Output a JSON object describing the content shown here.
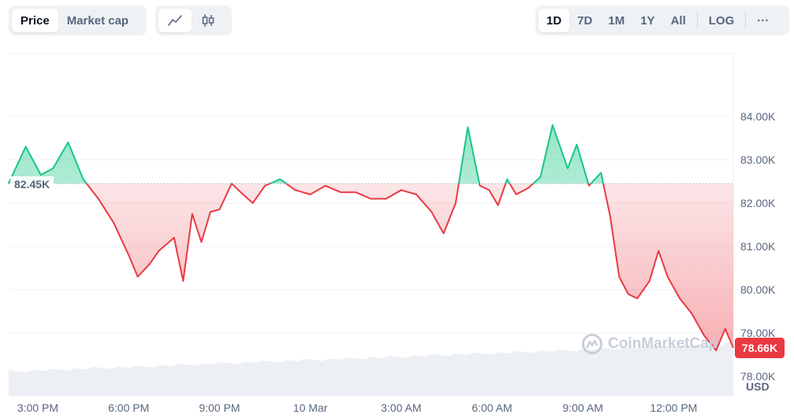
{
  "toolbar": {
    "metric_tabs": [
      {
        "label": "Price",
        "active": true
      },
      {
        "label": "Market cap",
        "active": false
      }
    ],
    "chart_types": [
      {
        "icon": "line-chart-icon",
        "active": true
      },
      {
        "icon": "candlestick-icon",
        "active": false
      }
    ],
    "ranges": [
      {
        "label": "1D",
        "active": true
      },
      {
        "label": "7D",
        "active": false
      },
      {
        "label": "1M",
        "active": false
      },
      {
        "label": "1Y",
        "active": false
      },
      {
        "label": "All",
        "active": false
      }
    ],
    "log_label": "LOG",
    "more_label": "···"
  },
  "watermark": "CoinMarketCap",
  "currency": "USD",
  "colors": {
    "up": "#16c784",
    "down": "#ea3943",
    "grid": "#eff2f5"
  },
  "chart_data": {
    "type": "line",
    "reference_value": 82.45,
    "reference_label": "82.45K",
    "current_label": "78.66K",
    "y_unit": "K USD",
    "ylim": [
      77.55,
      85.45
    ],
    "y_ticks": [
      {
        "value": 84,
        "label": "84.00K"
      },
      {
        "value": 83,
        "label": "83.00K"
      },
      {
        "value": 82,
        "label": "82.00K"
      },
      {
        "value": 81,
        "label": "81.00K"
      },
      {
        "value": 80,
        "label": "80.00K"
      },
      {
        "value": 79,
        "label": "79.00K"
      },
      {
        "value": 78,
        "label": "78.00K"
      }
    ],
    "x_ticks": [
      {
        "hour": 0,
        "label": "3:00 PM"
      },
      {
        "hour": 3,
        "label": "6:00 PM"
      },
      {
        "hour": 6,
        "label": "9:00 PM"
      },
      {
        "hour": 9,
        "label": "10 Mar"
      },
      {
        "hour": 12,
        "label": "3:00 AM"
      },
      {
        "hour": 15,
        "label": "6:00 AM"
      },
      {
        "hour": 18,
        "label": "9:00 AM"
      },
      {
        "hour": 21,
        "label": "12:00 PM"
      }
    ],
    "x_hours": [
      -0.97,
      -0.4,
      0.1,
      0.5,
      1.0,
      1.5,
      2.0,
      2.5,
      3.0,
      3.3,
      3.7,
      4.0,
      4.5,
      4.8,
      5.1,
      5.4,
      5.7,
      6.0,
      6.4,
      6.7,
      7.1,
      7.5,
      8.0,
      8.5,
      9.0,
      9.5,
      10.0,
      10.5,
      11.0,
      11.5,
      12.0,
      12.5,
      13.0,
      13.4,
      13.8,
      14.2,
      14.6,
      14.9,
      15.2,
      15.5,
      15.8,
      16.2,
      16.6,
      17.0,
      17.5,
      17.8,
      18.2,
      18.6,
      18.9,
      19.2,
      19.5,
      19.8,
      20.2,
      20.5,
      20.8,
      21.2,
      21.6,
      22.0,
      22.4,
      22.7,
      22.97
    ],
    "prices": [
      82.45,
      83.3,
      82.65,
      82.8,
      83.4,
      82.55,
      82.1,
      81.55,
      80.8,
      80.3,
      80.6,
      80.9,
      81.2,
      80.2,
      81.75,
      81.1,
      81.8,
      81.85,
      82.45,
      82.25,
      82.0,
      82.4,
      82.55,
      82.3,
      82.2,
      82.4,
      82.25,
      82.25,
      82.1,
      82.1,
      82.3,
      82.2,
      81.8,
      81.3,
      82.0,
      83.75,
      82.4,
      82.3,
      81.95,
      82.55,
      82.2,
      82.35,
      82.6,
      83.8,
      82.8,
      83.35,
      82.4,
      82.7,
      81.7,
      80.3,
      79.9,
      79.8,
      80.2,
      80.9,
      80.3,
      79.8,
      79.45,
      78.95,
      78.6,
      79.1,
      78.66
    ]
  }
}
